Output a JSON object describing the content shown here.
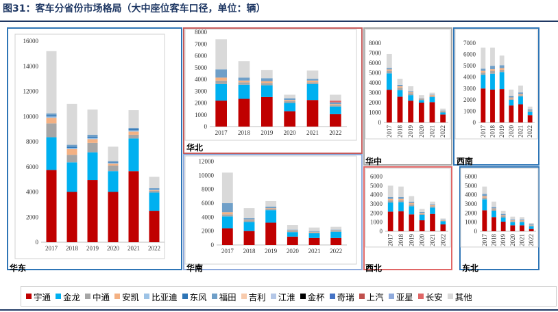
{
  "title": "图31：客车分省份市场格局（大中座位客车口径，单位：辆）",
  "chart_data": [
    {
      "type": "bar",
      "stacked": true,
      "region": "华东",
      "categories": [
        "2017",
        "2018",
        "2019",
        "2020",
        "2021",
        "2022"
      ],
      "ylim": [
        0,
        16000
      ],
      "yticks": [
        0,
        2000,
        4000,
        6000,
        8000,
        10000,
        12000,
        14000,
        16000
      ],
      "series": [
        {
          "name": "宇通",
          "values": [
            5750,
            4000,
            4950,
            4000,
            5650,
            2500
          ]
        },
        {
          "name": "金龙",
          "values": [
            2600,
            2350,
            2200,
            1650,
            2600,
            1450
          ]
        },
        {
          "name": "中通",
          "values": [
            1100,
            600,
            750,
            450,
            300,
            150
          ]
        },
        {
          "name": "安凯",
          "values": [
            450,
            450,
            300,
            150,
            250,
            50
          ]
        },
        {
          "name": "比亚迪",
          "values": [
            100,
            100,
            100,
            50,
            100,
            50
          ]
        },
        {
          "name": "东风",
          "values": [
            100,
            100,
            100,
            50,
            100,
            50
          ]
        },
        {
          "name": "福田",
          "values": [
            150,
            150,
            150,
            100,
            100,
            50
          ]
        },
        {
          "name": "其他",
          "values": [
            4950,
            3250,
            2000,
            1150,
            1400,
            900
          ]
        }
      ]
    },
    {
      "type": "bar",
      "stacked": true,
      "region": "华北",
      "categories": [
        "2017",
        "2018",
        "2019",
        "2020",
        "2021",
        "2022"
      ],
      "ylim": [
        0,
        8000
      ],
      "yticks": [
        0,
        1000,
        2000,
        3000,
        4000,
        5000,
        6000,
        7000,
        8000
      ],
      "series": [
        {
          "name": "宇通",
          "values": [
            2200,
            2350,
            2500,
            1300,
            2250,
            1050
          ]
        },
        {
          "name": "金龙",
          "values": [
            1400,
            1200,
            1000,
            700,
            1350,
            650
          ]
        },
        {
          "name": "中通",
          "values": [
            300,
            200,
            200,
            150,
            150,
            100
          ]
        },
        {
          "name": "安凯",
          "values": [
            250,
            150,
            150,
            100,
            150,
            100
          ]
        },
        {
          "name": "福田",
          "values": [
            700,
            250,
            250,
            150,
            150,
            150
          ]
        },
        {
          "name": "长安",
          "values": [
            0,
            0,
            0,
            0,
            0,
            150
          ]
        },
        {
          "name": "其他",
          "values": [
            2550,
            1400,
            700,
            300,
            700,
            500
          ]
        }
      ]
    },
    {
      "type": "bar",
      "stacked": true,
      "region": "华中",
      "categories": [
        "2017",
        "2018",
        "2019",
        "2020",
        "2021",
        "2022"
      ],
      "ylim": [
        0,
        8000
      ],
      "yticks": [
        0,
        1000,
        2000,
        3000,
        4000,
        5000,
        6000,
        7000,
        8000
      ],
      "series": [
        {
          "name": "宇通",
          "values": [
            3300,
            2600,
            2200,
            2000,
            2050,
            800
          ]
        },
        {
          "name": "金龙",
          "values": [
            1650,
            650,
            550,
            250,
            500,
            200
          ]
        },
        {
          "name": "中通",
          "values": [
            250,
            250,
            200,
            100,
            100,
            100
          ]
        },
        {
          "name": "安凯",
          "values": [
            150,
            150,
            100,
            50,
            100,
            50
          ]
        },
        {
          "name": "福田",
          "values": [
            150,
            150,
            100,
            50,
            50,
            50
          ]
        },
        {
          "name": "其他",
          "values": [
            1400,
            600,
            500,
            300,
            200,
            200
          ]
        }
      ]
    },
    {
      "type": "bar",
      "stacked": true,
      "region": "西南",
      "categories": [
        "2017",
        "2018",
        "2019",
        "2020",
        "2021",
        "2022"
      ],
      "ylim": [
        0,
        7000
      ],
      "yticks": [
        0,
        1000,
        2000,
        3000,
        4000,
        5000,
        6000,
        7000
      ],
      "series": [
        {
          "name": "宇通",
          "values": [
            3000,
            2900,
            2950,
            1500,
            1600,
            650
          ]
        },
        {
          "name": "金龙",
          "values": [
            1200,
            1400,
            1500,
            500,
            700,
            300
          ]
        },
        {
          "name": "中通",
          "values": [
            200,
            250,
            200,
            100,
            100,
            50
          ]
        },
        {
          "name": "安凯",
          "values": [
            150,
            150,
            150,
            100,
            100,
            50
          ]
        },
        {
          "name": "福田",
          "values": [
            200,
            300,
            250,
            150,
            150,
            100
          ]
        },
        {
          "name": "其他",
          "values": [
            1850,
            1600,
            850,
            550,
            600,
            250
          ]
        }
      ]
    },
    {
      "type": "bar",
      "stacked": true,
      "region": "华南",
      "categories": [
        "2017",
        "2018",
        "2019",
        "2020",
        "2021",
        "2022"
      ],
      "ylim": [
        0,
        12000
      ],
      "yticks": [
        0,
        2000,
        4000,
        6000,
        8000,
        10000,
        12000
      ],
      "series": [
        {
          "name": "宇通",
          "values": [
            2400,
            2000,
            3200,
            1200,
            1000,
            1000
          ]
        },
        {
          "name": "金龙",
          "values": [
            1700,
            1300,
            1800,
            650,
            700,
            900
          ]
        },
        {
          "name": "中通",
          "values": [
            300,
            250,
            200,
            150,
            100,
            100
          ]
        },
        {
          "name": "安凯",
          "values": [
            300,
            100,
            100,
            100,
            100,
            100
          ]
        },
        {
          "name": "福田",
          "values": [
            1300,
            200,
            200,
            100,
            100,
            100
          ]
        },
        {
          "name": "其他",
          "values": [
            4400,
            1450,
            800,
            650,
            500,
            400
          ]
        }
      ]
    },
    {
      "type": "bar",
      "stacked": true,
      "region": "西北",
      "categories": [
        "2017",
        "2018",
        "2019",
        "2020",
        "2021",
        "2022"
      ],
      "ylim": [
        0,
        6000
      ],
      "yticks": [
        0,
        1000,
        2000,
        3000,
        4000,
        5000,
        6000
      ],
      "series": [
        {
          "name": "宇通",
          "values": [
            2150,
            2200,
            1850,
            1200,
            1900,
            750
          ]
        },
        {
          "name": "金龙",
          "values": [
            1000,
            1000,
            900,
            600,
            700,
            350
          ]
        },
        {
          "name": "中通",
          "values": [
            250,
            200,
            200,
            100,
            150,
            50
          ]
        },
        {
          "name": "安凯",
          "values": [
            150,
            150,
            150,
            100,
            100,
            50
          ]
        },
        {
          "name": "福田",
          "values": [
            200,
            200,
            150,
            100,
            100,
            50
          ]
        },
        {
          "name": "其他",
          "values": [
            1250,
            1150,
            600,
            350,
            300,
            150
          ]
        }
      ]
    },
    {
      "type": "bar",
      "stacked": true,
      "region": "东北",
      "categories": [
        "2017",
        "2018",
        "2019",
        "2020",
        "2021",
        "2022"
      ],
      "ylim": [
        0,
        6000
      ],
      "yticks": [
        0,
        1000,
        2000,
        3000,
        4000,
        5000,
        6000
      ],
      "series": [
        {
          "name": "宇通",
          "values": [
            2300,
            1550,
            1050,
            650,
            650,
            250
          ]
        },
        {
          "name": "金龙",
          "values": [
            1200,
            700,
            450,
            350,
            350,
            300
          ]
        },
        {
          "name": "中通",
          "values": [
            200,
            150,
            150,
            100,
            100,
            50
          ]
        },
        {
          "name": "安凯",
          "values": [
            150,
            100,
            100,
            100,
            100,
            50
          ]
        },
        {
          "name": "福田",
          "values": [
            250,
            150,
            150,
            100,
            100,
            100
          ]
        },
        {
          "name": "其他",
          "values": [
            800,
            600,
            350,
            300,
            250,
            150
          ]
        }
      ]
    }
  ],
  "legend": [
    {
      "name": "宇通",
      "color": "#c00000"
    },
    {
      "name": "金龙",
      "color": "#00b0f0"
    },
    {
      "name": "中通",
      "color": "#a6a6a6"
    },
    {
      "name": "安凯",
      "color": "#f4b183"
    },
    {
      "name": "比亚迪",
      "color": "#9dc3e6"
    },
    {
      "name": "东风",
      "color": "#2e75b6"
    },
    {
      "name": "福田",
      "color": "#6f9fc8"
    },
    {
      "name": "吉利",
      "color": "#f8cbad"
    },
    {
      "name": "江淮",
      "color": "#b4c7e7"
    },
    {
      "name": "金杯",
      "color": "#000000"
    },
    {
      "name": "奇瑞",
      "color": "#4472c4"
    },
    {
      "name": "上汽",
      "color": "#c0504d"
    },
    {
      "name": "亚星",
      "color": "#8faadc"
    },
    {
      "name": "长安",
      "color": "#e06666"
    },
    {
      "name": "其他",
      "color": "#d9d9d9"
    }
  ],
  "series_colors": {
    "宇通": "#c00000",
    "金龙": "#00b0f0",
    "中通": "#a6a6a6",
    "安凯": "#f4b183",
    "比亚迪": "#9dc3e6",
    "东风": "#2e75b6",
    "福田": "#6f9fc8",
    "吉利": "#f8cbad",
    "江淮": "#b4c7e7",
    "金杯": "#000000",
    "奇瑞": "#4472c4",
    "上汽": "#c0504d",
    "亚星": "#8faadc",
    "长安": "#e06666",
    "其他": "#d9d9d9"
  }
}
